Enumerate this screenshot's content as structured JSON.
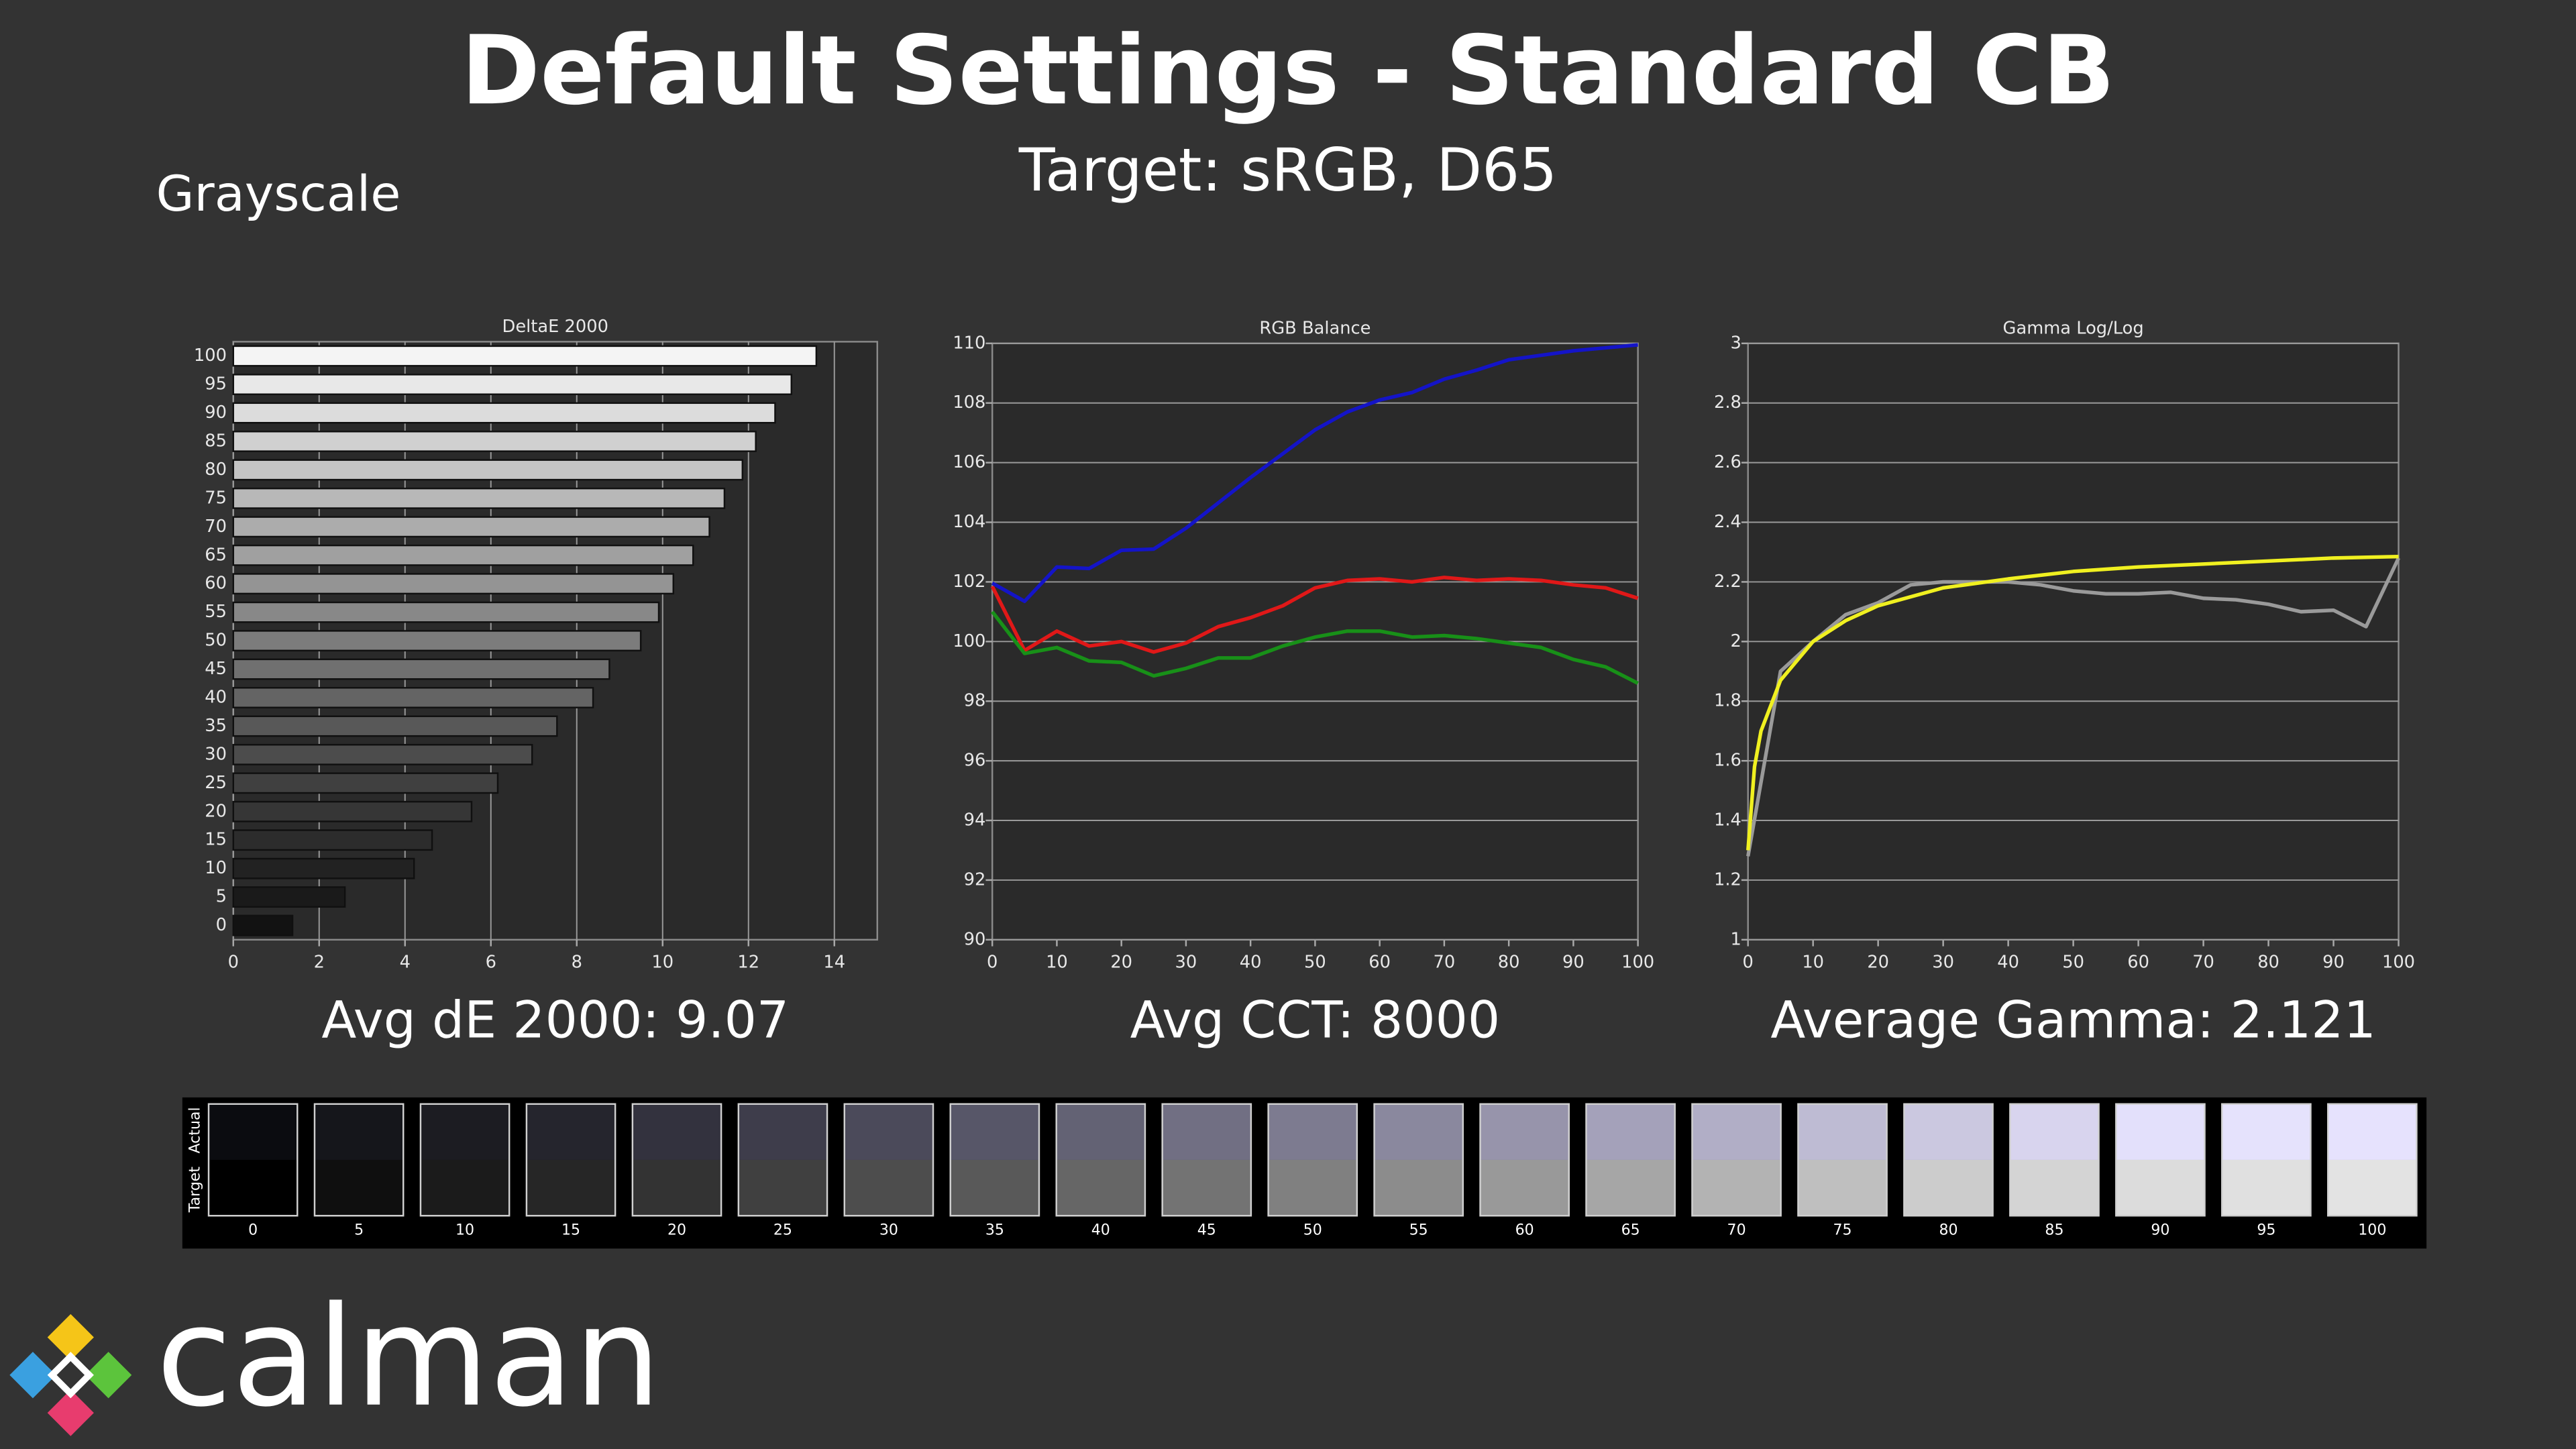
{
  "title": "Default Settings - Standard CB",
  "subtitle": "Target: sRGB, D65",
  "section": "Grayscale",
  "logo": "calman",
  "chart_data": [
    {
      "type": "barh",
      "title": "DeltaE 2000",
      "summary": "Avg dE 2000: 9.07",
      "categories": [
        "100",
        "95",
        "90",
        "85",
        "80",
        "75",
        "70",
        "65",
        "60",
        "55",
        "50",
        "45",
        "40",
        "35",
        "30",
        "25",
        "20",
        "15",
        "10",
        "5",
        "0"
      ],
      "values": [
        13.58,
        13.0,
        12.62,
        12.17,
        11.86,
        11.44,
        11.09,
        10.71,
        10.25,
        9.91,
        9.49,
        8.76,
        8.38,
        7.54,
        6.96,
        6.16,
        5.55,
        4.63,
        4.21,
        2.6,
        1.38
      ],
      "colors": [
        "#f4f4f4",
        "#e8e8e8",
        "#dcdcdc",
        "#d0d0d0",
        "#c4c4c4",
        "#b8b8b8",
        "#acacac",
        "#a0a0a0",
        "#949494",
        "#888888",
        "#7c7c7c",
        "#707070",
        "#646464",
        "#585858",
        "#4c4c4c",
        "#404040",
        "#363636",
        "#2c2c2c",
        "#222222",
        "#1a1a1a",
        "#121212"
      ],
      "xlim": [
        0,
        15
      ],
      "xticks": [
        0,
        2,
        4,
        6,
        8,
        10,
        12,
        14
      ],
      "grid": true
    },
    {
      "type": "line",
      "title": "RGB Balance",
      "summary": "Avg CCT: 8000",
      "x": [
        0,
        5,
        10,
        15,
        20,
        25,
        30,
        35,
        40,
        45,
        50,
        55,
        60,
        65,
        70,
        75,
        80,
        85,
        90,
        95,
        100
      ],
      "series": [
        {
          "color": "#e01818",
          "values": [
            101.85,
            99.7,
            100.35,
            99.85,
            100.0,
            99.65,
            99.95,
            100.5,
            100.8,
            101.2,
            101.8,
            102.05,
            102.1,
            102.0,
            102.15,
            102.05,
            102.1,
            102.05,
            101.9,
            101.8,
            101.45
          ]
        },
        {
          "color": "#189018",
          "values": [
            101.0,
            99.6,
            99.8,
            99.35,
            99.3,
            98.85,
            99.1,
            99.45,
            99.45,
            99.85,
            100.15,
            100.35,
            100.35,
            100.15,
            100.2,
            100.1,
            99.95,
            99.8,
            99.4,
            99.15,
            98.6
          ]
        },
        {
          "color": "#1414c8",
          "values": [
            101.96,
            101.35,
            102.5,
            102.45,
            103.06,
            103.1,
            103.8,
            104.65,
            105.5,
            106.3,
            107.1,
            107.7,
            108.1,
            108.35,
            108.8,
            109.1,
            109.45,
            109.6,
            109.75,
            109.85,
            109.95
          ]
        }
      ],
      "xlim": [
        0,
        100
      ],
      "xticks": [
        0,
        10,
        20,
        30,
        40,
        50,
        60,
        70,
        80,
        90,
        100
      ],
      "ylim": [
        90,
        110
      ],
      "yticks": [
        90,
        92,
        94,
        96,
        98,
        100,
        102,
        104,
        106,
        108,
        110
      ],
      "grid": true
    },
    {
      "type": "line",
      "title": "Gamma Log/Log",
      "summary": "Average Gamma: 2.121",
      "series": [
        {
          "color": "#9a9a9a",
          "x": [
            0,
            5,
            10,
            15,
            20,
            25,
            30,
            35,
            40,
            45,
            50,
            55,
            60,
            65,
            70,
            75,
            80,
            85,
            90,
            95,
            100
          ],
          "values": [
            1.28,
            1.9,
            2.0,
            2.09,
            2.13,
            2.19,
            2.2,
            2.2,
            2.2,
            2.19,
            2.17,
            2.16,
            2.16,
            2.165,
            2.145,
            2.14,
            2.125,
            2.1,
            2.105,
            2.05,
            2.28
          ]
        },
        {
          "color": "#f0f020",
          "x": [
            0,
            1,
            2,
            5,
            10,
            15,
            20,
            30,
            40,
            50,
            60,
            70,
            80,
            90,
            100
          ],
          "values": [
            1.3,
            1.58,
            1.7,
            1.87,
            2.0,
            2.07,
            2.12,
            2.18,
            2.21,
            2.235,
            2.25,
            2.26,
            2.27,
            2.28,
            2.285
          ]
        }
      ],
      "xlim": [
        0,
        100
      ],
      "xticks": [
        0,
        10,
        20,
        30,
        40,
        50,
        60,
        70,
        80,
        90,
        100
      ],
      "ylim": [
        1,
        3
      ],
      "yticks": [
        1,
        1.2,
        1.4,
        1.6,
        1.8,
        2,
        2.2,
        2.4,
        2.6,
        2.8,
        3
      ],
      "grid": true
    }
  ],
  "swatches": {
    "row_labels": [
      "Actual",
      "Target"
    ],
    "categories": [
      "0",
      "5",
      "10",
      "15",
      "20",
      "25",
      "30",
      "35",
      "40",
      "45",
      "50",
      "55",
      "60",
      "65",
      "70",
      "75",
      "80",
      "85",
      "90",
      "95",
      "100"
    ],
    "actual_colors": [
      "#0b0c10",
      "#15161b",
      "#1c1c22",
      "#25252d",
      "#33323e",
      "#3e3d4b",
      "#4b4a5a",
      "#575668",
      "#636274",
      "#716f83",
      "#7d7b90",
      "#8a889e",
      "#9794ab",
      "#a4a1ba",
      "#b1aec6",
      "#bebbd3",
      "#cbc8e0",
      "#d8d4ee",
      "#e3e0fb",
      "#e5e2fc",
      "#e6e2fd"
    ],
    "target_colors": [
      "#000000",
      "#0f0f0f",
      "#1b1b1b",
      "#262626",
      "#333333",
      "#404040",
      "#4d4d4d",
      "#595959",
      "#666666",
      "#737373",
      "#808080",
      "#8c8c8c",
      "#999999",
      "#a6a6a6",
      "#b3b3b3",
      "#bfbfbf",
      "#cccccc",
      "#d4d4d4",
      "#dcdcdc",
      "#e0e0e0",
      "#e3e3e3"
    ]
  }
}
